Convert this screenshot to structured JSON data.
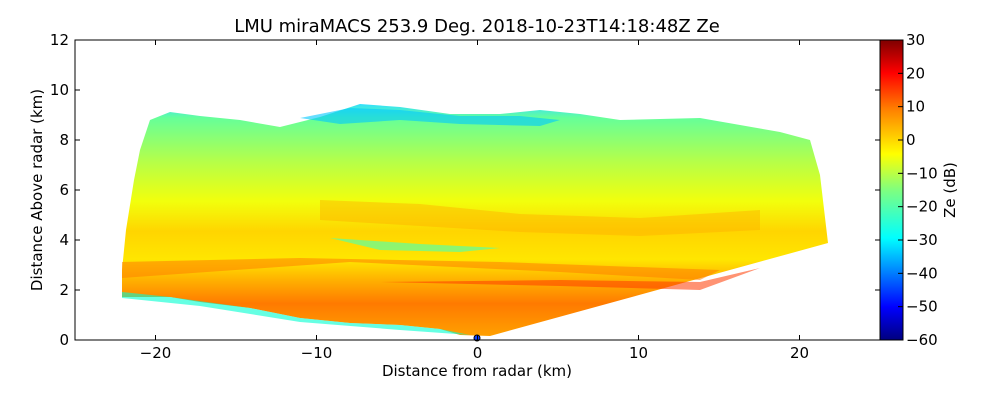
{
  "chart_data": {
    "type": "heatmap",
    "title": "LMU miraMACS 253.9 Deg. 2018-10-23T14:18:48Z  Ze",
    "xlabel": "Distance from radar (km)",
    "ylabel": "Distance Above radar  (km)",
    "xlim": [
      -25,
      25
    ],
    "ylim": [
      0,
      12
    ],
    "xticks": [
      -20,
      -10,
      0,
      10,
      20
    ],
    "xtick_labels": [
      "−20",
      "−10",
      "0",
      "10",
      "20"
    ],
    "yticks": [
      0,
      2,
      4,
      6,
      8,
      10,
      12
    ],
    "ytick_labels": [
      "0",
      "2",
      "4",
      "6",
      "8",
      "10",
      "12"
    ],
    "colorbar": {
      "label": "Ze (dB)",
      "colormap": "jet",
      "range": [
        -60,
        30
      ],
      "ticks": [
        30,
        20,
        10,
        0,
        -10,
        -20,
        -30,
        -40,
        -50,
        -60
      ],
      "tick_labels": [
        "30",
        "20",
        "10",
        "0",
        "−10",
        "−20",
        "−30",
        "−40",
        "−50",
        "−60"
      ]
    },
    "scan": {
      "azimuth_deg": 253.9,
      "range_extent_km": [
        -22,
        21.8
      ],
      "cloud_top_km": 9.2,
      "lower_edge_left_km": 1.6,
      "right_edge_bottom_km": 3.8
    },
    "reflectivity_profile": {
      "heights_km": [
        0.5,
        1.5,
        2.2,
        3.0,
        4.0,
        5.0,
        6.0,
        7.0,
        8.0,
        8.8
      ],
      "ze_db": [
        8,
        12,
        15,
        8,
        0,
        2,
        -4,
        -10,
        -18,
        -28
      ]
    }
  },
  "colors": {
    "jet": [
      "#00007f",
      "#0000ff",
      "#007fff",
      "#00ffff",
      "#7fff7f",
      "#ffff00",
      "#ff7f00",
      "#ff0000",
      "#7f0000"
    ]
  }
}
